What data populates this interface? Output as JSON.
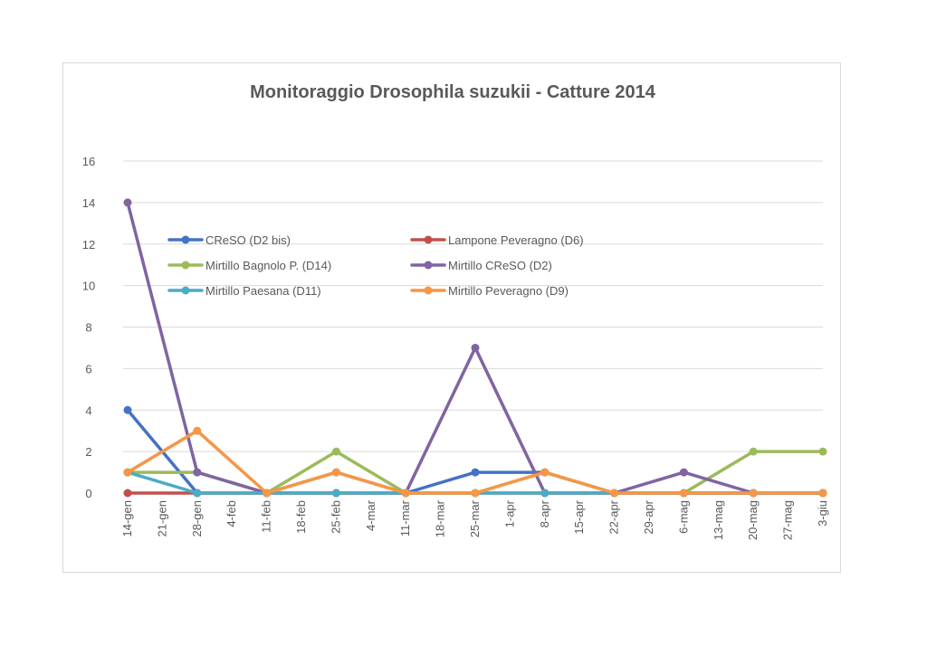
{
  "chart_data": {
    "type": "line",
    "title": "Monitoraggio Drosophila suzukii - Catture 2014",
    "xlabel": "",
    "ylabel": "",
    "ylim": [
      0,
      16
    ],
    "yticks": [
      0,
      2,
      4,
      6,
      8,
      10,
      12,
      14,
      16
    ],
    "grid": true,
    "legend_position": "inside-top-left",
    "categories": [
      "14-gen",
      "21-gen",
      "28-gen",
      "4-feb",
      "11-feb",
      "18-feb",
      "25-feb",
      "4-mar",
      "11-mar",
      "18-mar",
      "25-mar",
      "1-apr",
      "8-apr",
      "15-apr",
      "22-apr",
      "29-apr",
      "6-mag",
      "13-mag",
      "20-mag",
      "27-mag",
      "3-giu"
    ],
    "series": [
      {
        "name": "CReSO (D2 bis)",
        "color": "#4472C4",
        "values": [
          4,
          null,
          0,
          null,
          0,
          null,
          0,
          null,
          0,
          null,
          1,
          null,
          1,
          null,
          0,
          null,
          0,
          null,
          0,
          null,
          0
        ]
      },
      {
        "name": "Lampone Peveragno (D6)",
        "color": "#C0504D",
        "values": [
          0,
          null,
          0,
          null,
          0,
          null,
          0,
          null,
          0,
          null,
          0,
          null,
          0,
          null,
          0,
          null,
          0,
          null,
          0,
          null,
          0
        ]
      },
      {
        "name": "Mirtillo Bagnolo P. (D14)",
        "color": "#9BBB59",
        "values": [
          1,
          null,
          1,
          null,
          0,
          null,
          2,
          null,
          0,
          null,
          0,
          null,
          1,
          null,
          0,
          null,
          0,
          null,
          2,
          null,
          2
        ]
      },
      {
        "name": "Mirtillo CReSO (D2)",
        "color": "#8064A2",
        "values": [
          14,
          null,
          1,
          null,
          0,
          null,
          1,
          null,
          0,
          null,
          7,
          null,
          0,
          null,
          0,
          null,
          1,
          null,
          0,
          null,
          0
        ]
      },
      {
        "name": "Mirtillo Paesana (D11)",
        "color": "#4BACC6",
        "values": [
          1,
          null,
          0,
          null,
          0,
          null,
          0,
          null,
          0,
          null,
          0,
          null,
          0,
          null,
          0,
          null,
          0,
          null,
          0,
          null,
          0
        ]
      },
      {
        "name": "Mirtillo Peveragno (D9)",
        "color": "#F79646",
        "values": [
          1,
          null,
          3,
          null,
          0,
          null,
          1,
          null,
          0,
          null,
          0,
          null,
          1,
          null,
          0,
          null,
          0,
          null,
          0,
          null,
          0
        ]
      }
    ]
  },
  "colors": {
    "grid": "#d9d9d9",
    "text": "#595959",
    "frame": "#d9d9d9"
  }
}
